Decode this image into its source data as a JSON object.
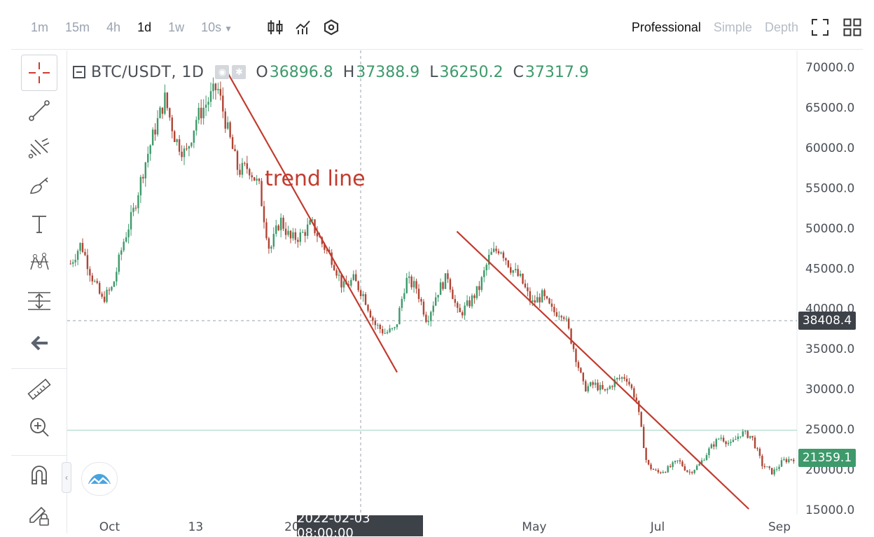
{
  "toolbar": {
    "intervals": [
      {
        "label": "1m",
        "active": false
      },
      {
        "label": "15m",
        "active": false
      },
      {
        "label": "4h",
        "active": false
      },
      {
        "label": "1d",
        "active": true
      },
      {
        "label": "1w",
        "active": false
      },
      {
        "label": "10s",
        "active": false
      }
    ],
    "chart_icons": [
      "candlestick-icon",
      "indicator-icon",
      "settings-icon"
    ],
    "modes": [
      {
        "label": "Professional",
        "active": true
      },
      {
        "label": "Simple",
        "active": false
      },
      {
        "label": "Depth",
        "active": false
      }
    ],
    "right_icons": [
      "fullscreen-icon",
      "layout-grid-icon"
    ]
  },
  "left_tools": [
    "crosshair-icon",
    "trend-line-icon",
    "fib-tool-icon",
    "brush-icon",
    "text-icon",
    "pattern-icon",
    "measure-lines-icon",
    "back-arrow-icon",
    "ruler-icon",
    "zoom-in-icon",
    "magnet-icon",
    "lock-pencil-icon"
  ],
  "legend": {
    "symbol": "BTC/USDT, 1D",
    "o_label": "O",
    "o_value": "36896.8",
    "h_label": "H",
    "h_value": "37388.9",
    "l_label": "L",
    "l_value": "36250.2",
    "c_label": "C",
    "c_value": "37317.9"
  },
  "annotation": "trend line",
  "crosshair_price": "38408.4",
  "last_price": "21359.1",
  "crosshair_time": "2022-02-03 08:00:00",
  "colors": {
    "up": "#3e9a6b",
    "down": "#b04535",
    "trend": "#c23b2e",
    "last_price": "#3e9a6b",
    "crosshair_tag": "#3d4148"
  },
  "chart_data": {
    "type": "candlestick",
    "title": "",
    "ylim": [
      15000,
      70000
    ],
    "y_ticks": [
      "70000.0",
      "65000.0",
      "60000.0",
      "55000.0",
      "50000.0",
      "45000.0",
      "40000.0",
      "35000.0",
      "30000.0",
      "25000.0",
      "20000.0",
      "15000.0"
    ],
    "x_tick_labels": [
      "Oct",
      "13",
      "20",
      "May",
      "Jul",
      "Sep"
    ],
    "close_series_approx": [
      45500,
      48000,
      44000,
      41000,
      42500,
      48000,
      52000,
      57500,
      62000,
      66000,
      61000,
      59000,
      63500,
      65500,
      67500,
      62000,
      57000,
      57500,
      55000,
      47000,
      51000,
      48500,
      49000,
      50500,
      48000,
      46000,
      42500,
      43500,
      41500,
      38000,
      36900,
      37300,
      43500,
      42500,
      38500,
      42000,
      44000,
      39000,
      40500,
      42500,
      46500,
      47500,
      45000,
      43500,
      40500,
      41500,
      39500,
      39500,
      35000,
      30000,
      30500,
      29500,
      31000,
      31500,
      28500,
      20500,
      19500,
      20000,
      21000,
      19500,
      20500,
      22500,
      24000,
      23000,
      24500,
      24000,
      20500,
      19500,
      21000,
      21300
    ],
    "trend_lines": [
      {
        "start": {
          "t": 0.215,
          "price": 70000
        },
        "end": {
          "t": 0.452,
          "price": 32000
        }
      },
      {
        "start": {
          "t": 0.534,
          "price": 49500
        },
        "end": {
          "t": 0.934,
          "price": 15000
        }
      }
    ],
    "horizontal_lines": [
      24800
    ]
  }
}
